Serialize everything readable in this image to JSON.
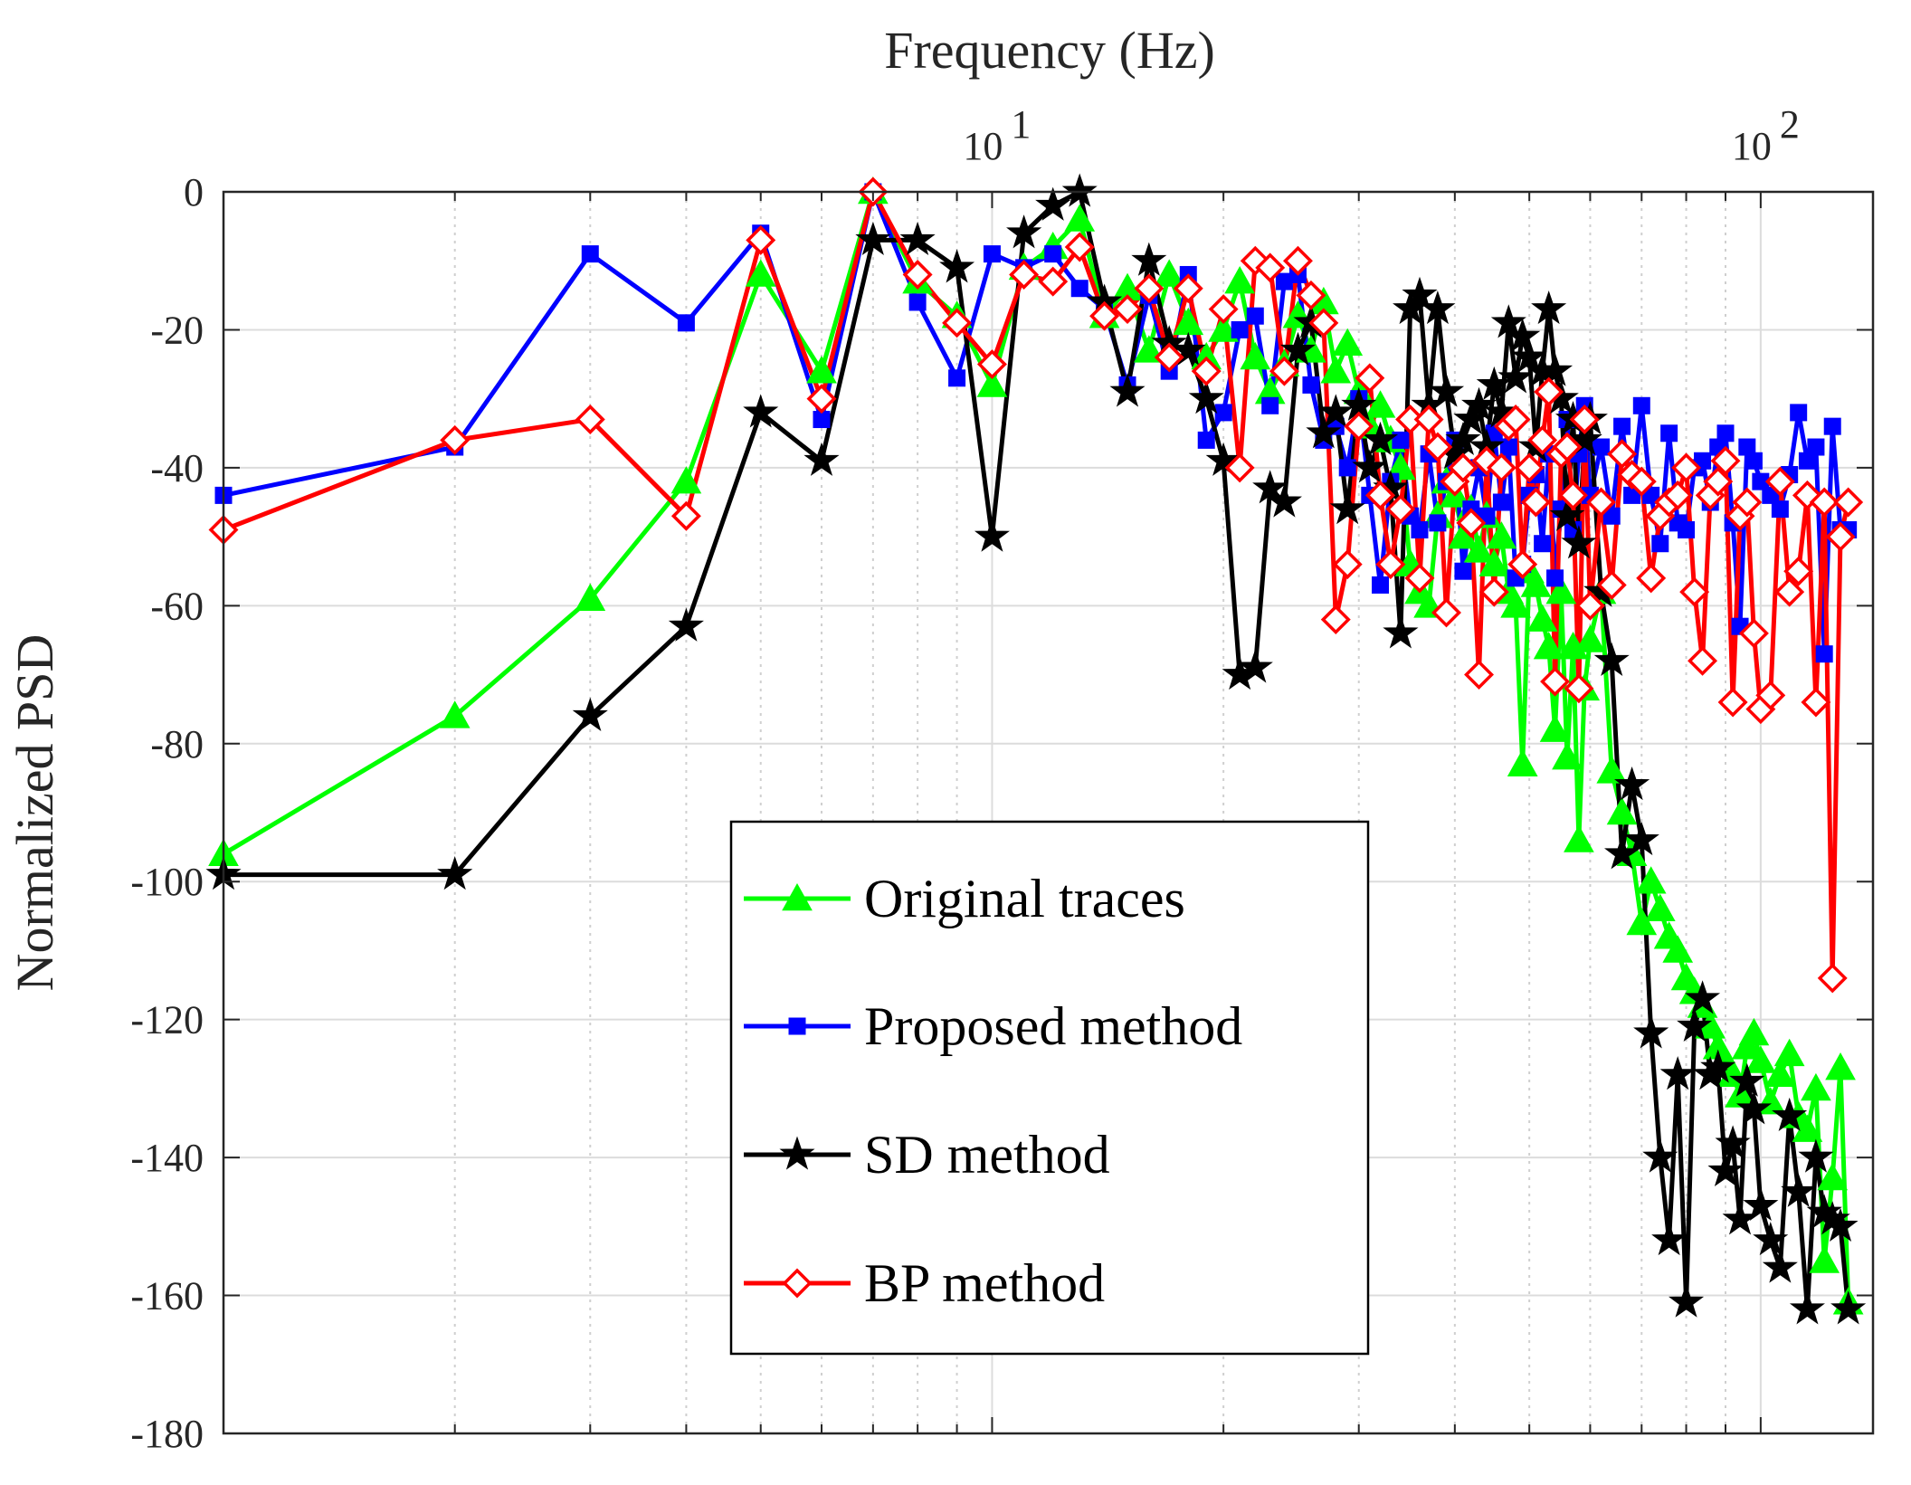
{
  "chart_data": {
    "type": "line",
    "title": "",
    "xlabel": "Frequency (Hz)",
    "ylabel": "Normalized PSD",
    "xscale": "log",
    "xaxis_location": "top",
    "xlim": [
      1,
      140
    ],
    "ylim": [
      -180,
      0
    ],
    "yticks": [
      0,
      -20,
      -40,
      -60,
      -80,
      -100,
      -120,
      -140,
      -160,
      -180
    ],
    "ytick_labels": [
      "0",
      "-20",
      "-40",
      "-60",
      "-80",
      "-100",
      "-120",
      "-140",
      "-160",
      "-180"
    ],
    "xticks": [
      {
        "base": "10",
        "exp": "1",
        "value": 10
      },
      {
        "base": "10",
        "exp": "2",
        "value": 100
      }
    ],
    "grid": true,
    "legend_position": "lower-center",
    "series": [
      {
        "name": "Original traces",
        "color": "#00ff00",
        "marker": "triangle",
        "x": [
          1,
          2,
          3,
          4,
          5,
          6,
          7,
          8,
          9,
          10,
          11,
          12,
          13,
          14,
          15,
          16,
          17,
          18,
          19,
          20,
          21,
          22,
          23,
          24,
          25,
          26,
          27,
          28,
          29,
          30,
          31,
          32,
          33,
          34,
          35,
          36,
          37,
          38,
          39,
          40,
          41,
          42,
          43,
          44,
          45,
          46,
          47,
          48,
          49,
          50,
          51,
          52,
          53,
          54,
          55,
          56,
          57,
          58,
          59,
          60,
          62,
          64,
          66,
          68,
          70,
          72,
          74,
          76,
          78,
          80,
          82,
          84,
          86,
          88,
          90,
          92,
          94,
          96,
          98,
          100,
          103,
          106,
          109,
          112,
          115,
          118,
          121,
          124,
          127,
          130
        ],
        "y": [
          -96,
          -76,
          -59,
          -42,
          -12,
          -26,
          0,
          -13,
          -18,
          -28,
          -11,
          -8,
          -4,
          -18,
          -14,
          -23,
          -12,
          -19,
          -24,
          -20,
          -13,
          -24,
          -29,
          -25,
          -18,
          -23,
          -16,
          -26,
          -22,
          -29,
          -34,
          -31,
          -36,
          -40,
          -54,
          -58,
          -60,
          -47,
          -42,
          -44,
          -50,
          -46,
          -52,
          -47,
          -54,
          -50,
          -58,
          -60,
          -83,
          -55,
          -57,
          -62,
          -66,
          -78,
          -58,
          -82,
          -66,
          -94,
          -72,
          -65,
          -58,
          -84,
          -90,
          -96,
          -106,
          -100,
          -104,
          -108,
          -110,
          -114,
          -116,
          -118,
          -121,
          -124,
          -126,
          -128,
          -131,
          -124,
          -122,
          -126,
          -132,
          -128,
          -125,
          -134,
          -136,
          -130,
          -155,
          -143,
          -127,
          -161
        ]
      },
      {
        "name": "Proposed method",
        "color": "#0000ff",
        "marker": "square",
        "x": [
          1,
          2,
          3,
          4,
          5,
          6,
          7,
          8,
          9,
          10,
          11,
          12,
          13,
          14,
          15,
          16,
          17,
          18,
          19,
          20,
          21,
          22,
          23,
          24,
          25,
          26,
          27,
          28,
          29,
          30,
          31,
          32,
          33,
          34,
          35,
          36,
          37,
          38,
          39,
          40,
          41,
          42,
          43,
          44,
          45,
          46,
          47,
          48,
          49,
          50,
          51,
          52,
          53,
          54,
          55,
          56,
          57,
          58,
          59,
          60,
          62,
          64,
          66,
          68,
          70,
          72,
          74,
          76,
          78,
          80,
          82,
          84,
          86,
          88,
          90,
          92,
          94,
          96,
          98,
          100,
          103,
          106,
          109,
          112,
          115,
          118,
          121,
          124,
          127,
          130
        ],
        "y": [
          -44,
          -37,
          -9,
          -19,
          -6,
          -33,
          0,
          -16,
          -27,
          -9,
          -11,
          -9,
          -14,
          -17,
          -28,
          -15,
          -26,
          -12,
          -36,
          -32,
          -20,
          -18,
          -31,
          -13,
          -12,
          -28,
          -36,
          -34,
          -40,
          -30,
          -44,
          -57,
          -42,
          -36,
          -47,
          -49,
          -38,
          -48,
          -42,
          -36,
          -55,
          -46,
          -40,
          -47,
          -35,
          -45,
          -37,
          -56,
          -54,
          -44,
          -41,
          -51,
          -38,
          -56,
          -46,
          -33,
          -49,
          -38,
          -31,
          -44,
          -37,
          -47,
          -34,
          -44,
          -31,
          -44,
          -51,
          -35,
          -48,
          -49,
          -40,
          -39,
          -45,
          -37,
          -35,
          -48,
          -63,
          -37,
          -39,
          -42,
          -44,
          -46,
          -41,
          -32,
          -39,
          -37,
          -67,
          -34,
          -49,
          -49
        ]
      },
      {
        "name": "SD method",
        "color": "#000000",
        "marker": "star",
        "x": [
          1,
          2,
          3,
          4,
          5,
          6,
          7,
          8,
          9,
          10,
          11,
          12,
          13,
          14,
          15,
          16,
          17,
          18,
          19,
          20,
          21,
          22,
          23,
          24,
          25,
          26,
          27,
          28,
          29,
          30,
          31,
          32,
          33,
          34,
          35,
          36,
          37,
          38,
          39,
          40,
          41,
          42,
          43,
          44,
          45,
          46,
          47,
          48,
          49,
          50,
          51,
          52,
          53,
          54,
          55,
          56,
          57,
          58,
          59,
          60,
          62,
          64,
          66,
          68,
          70,
          72,
          74,
          76,
          78,
          80,
          82,
          84,
          86,
          88,
          90,
          92,
          94,
          96,
          98,
          100,
          103,
          106,
          109,
          112,
          115,
          118,
          121,
          124,
          127,
          130
        ],
        "y": [
          -99,
          -99,
          -76,
          -63,
          -32,
          -39,
          -7,
          -7,
          -11,
          -50,
          -6,
          -2,
          0,
          -16,
          -29,
          -10,
          -22,
          -23,
          -30,
          -39,
          -70,
          -69,
          -43,
          -45,
          -23,
          -19,
          -35,
          -32,
          -46,
          -31,
          -40,
          -36,
          -43,
          -64,
          -17,
          -15,
          -31,
          -17,
          -29,
          -38,
          -36,
          -33,
          -31,
          -37,
          -28,
          -32,
          -19,
          -27,
          -21,
          -24,
          -37,
          -26,
          -17,
          -26,
          -30,
          -47,
          -33,
          -51,
          -36,
          -33,
          -58,
          -68,
          -96,
          -86,
          -94,
          -122,
          -140,
          -152,
          -128,
          -161,
          -121,
          -117,
          -128,
          -127,
          -142,
          -138,
          -149,
          -129,
          -133,
          -147,
          -152,
          -156,
          -134,
          -145,
          -162,
          -140,
          -148,
          -149,
          -150,
          -162
        ]
      },
      {
        "name": "BP method",
        "color": "#ff0000",
        "marker": "diamond",
        "x": [
          1,
          2,
          3,
          4,
          5,
          6,
          7,
          8,
          9,
          10,
          11,
          12,
          13,
          14,
          15,
          16,
          17,
          18,
          19,
          20,
          21,
          22,
          23,
          24,
          25,
          26,
          27,
          28,
          29,
          30,
          31,
          32,
          33,
          34,
          35,
          36,
          37,
          38,
          39,
          40,
          41,
          42,
          43,
          44,
          45,
          46,
          47,
          48,
          49,
          50,
          51,
          52,
          53,
          54,
          55,
          56,
          57,
          58,
          59,
          60,
          62,
          64,
          66,
          68,
          70,
          72,
          74,
          76,
          78,
          80,
          82,
          84,
          86,
          88,
          90,
          92,
          94,
          96,
          98,
          100,
          103,
          106,
          109,
          112,
          115,
          118,
          121,
          124,
          127,
          130
        ],
        "y": [
          -49,
          -36,
          -33,
          -47,
          -7,
          -30,
          0,
          -12,
          -19,
          -25,
          -12,
          -13,
          -8,
          -18,
          -17,
          -14,
          -24,
          -14,
          -26,
          -17,
          -40,
          -10,
          -11,
          -26,
          -10,
          -15,
          -19,
          -62,
          -54,
          -34,
          -27,
          -44,
          -54,
          -46,
          -33,
          -56,
          -33,
          -37,
          -61,
          -42,
          -40,
          -48,
          -70,
          -39,
          -58,
          -40,
          -34,
          -33,
          -54,
          -40,
          -45,
          -36,
          -29,
          -71,
          -38,
          -37,
          -44,
          -72,
          -33,
          -60,
          -45,
          -57,
          -38,
          -41,
          -42,
          -56,
          -47,
          -45,
          -44,
          -40,
          -58,
          -68,
          -44,
          -42,
          -39,
          -74,
          -47,
          -45,
          -64,
          -75,
          -73,
          -42,
          -58,
          -55,
          -44,
          -74,
          -45,
          -114,
          -50,
          -45
        ]
      }
    ]
  }
}
